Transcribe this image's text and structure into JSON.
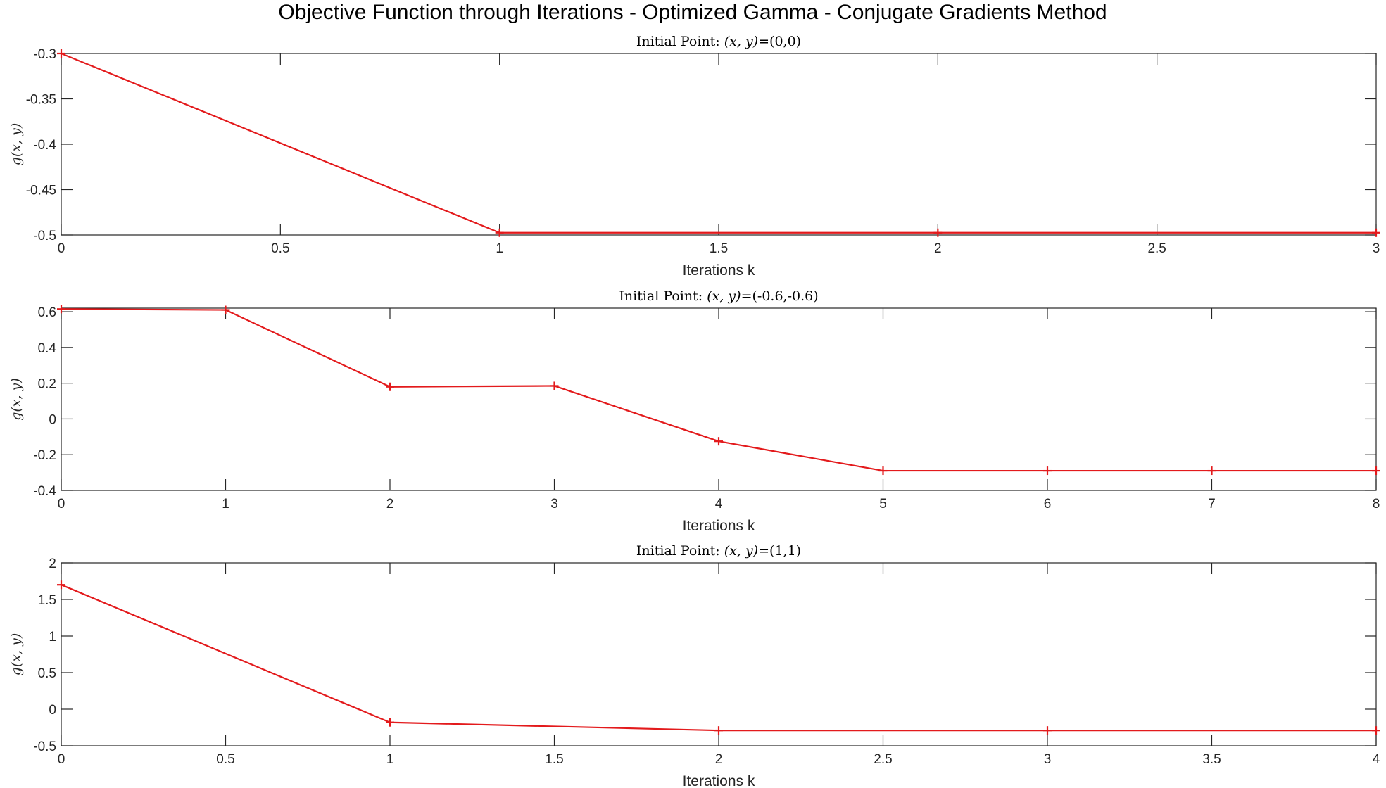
{
  "figure": {
    "title": "Objective Function through Iterations - Optimized Gamma - Conjugate Gradients Method"
  },
  "colors": {
    "series": "#e31a1c"
  },
  "chart_data": [
    {
      "type": "line",
      "title_prefix": "Initial Point: ",
      "title_math": "(x, y)",
      "title_value": "=(0,0)",
      "xlabel": "Iterations k",
      "ylabel": "g(x, y)",
      "xlim": [
        0,
        3
      ],
      "ylim": [
        -0.5,
        -0.3
      ],
      "xticks": [
        "0",
        "0.5",
        "1",
        "1.5",
        "2",
        "2.5",
        "3"
      ],
      "yticks": [
        "-0.5",
        "-0.45",
        "-0.4",
        "-0.35",
        "-0.3"
      ],
      "series": [
        {
          "x": [
            0,
            1,
            2,
            3
          ],
          "y": [
            -0.3,
            -0.4975,
            -0.4975,
            -0.4975
          ]
        }
      ]
    },
    {
      "type": "line",
      "title_prefix": "Initial Point: ",
      "title_math": "(x, y)",
      "title_value": "=(-0.6,-0.6)",
      "xlabel": "Iterations k",
      "ylabel": "g(x, y)",
      "xlim": [
        0,
        8
      ],
      "ylim": [
        -0.4,
        0.62
      ],
      "xticks": [
        "0",
        "1",
        "2",
        "3",
        "4",
        "5",
        "6",
        "7",
        "8"
      ],
      "yticks": [
        "-0.4",
        "-0.2",
        "0",
        "0.2",
        "0.4",
        "0.6"
      ],
      "series": [
        {
          "x": [
            0,
            1,
            2,
            3,
            4,
            5,
            6,
            7,
            8
          ],
          "y": [
            0.615,
            0.61,
            0.18,
            0.185,
            -0.125,
            -0.29,
            -0.29,
            -0.29,
            -0.29
          ]
        }
      ]
    },
    {
      "type": "line",
      "title_prefix": "Initial Point: ",
      "title_math": "(x, y)",
      "title_value": "=(1,1)",
      "xlabel": "Iterations k",
      "ylabel": "g(x, y)",
      "xlim": [
        0,
        4
      ],
      "ylim": [
        -0.5,
        2
      ],
      "xticks": [
        "0",
        "0.5",
        "1",
        "1.5",
        "2",
        "2.5",
        "3",
        "3.5",
        "4"
      ],
      "yticks": [
        "-0.5",
        "0",
        "0.5",
        "1",
        "1.5",
        "2"
      ],
      "series": [
        {
          "x": [
            0,
            1,
            2,
            3,
            4
          ],
          "y": [
            1.7,
            -0.18,
            -0.29,
            -0.29,
            -0.29
          ]
        }
      ]
    }
  ]
}
